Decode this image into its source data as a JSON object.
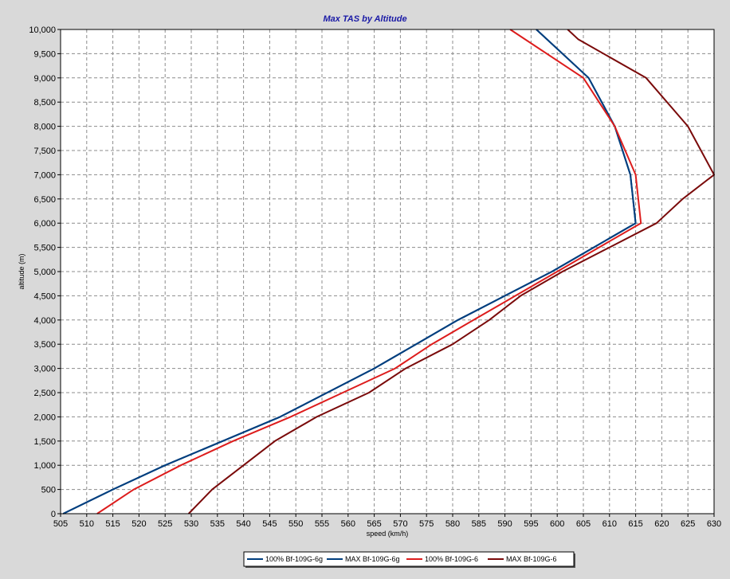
{
  "colors": {
    "background": "#d9d9d9",
    "plot_background": "#ffffff",
    "grid": "#8c8c8c",
    "title": "#1a1aa6"
  },
  "chart_data": {
    "type": "line",
    "title": "Max TAS by Altitude",
    "xlabel": "speed (km/h)",
    "ylabel": "altitude (m)",
    "xlim": [
      505,
      630
    ],
    "ylim": [
      0,
      10000
    ],
    "x_ticks": [
      "505",
      "510",
      "515",
      "520",
      "525",
      "530",
      "535",
      "540",
      "545",
      "550",
      "555",
      "560",
      "565",
      "570",
      "575",
      "580",
      "585",
      "590",
      "595",
      "600",
      "605",
      "610",
      "615",
      "620",
      "625",
      "630"
    ],
    "y_ticks": [
      "0",
      "500",
      "1,000",
      "1,500",
      "2,000",
      "2,500",
      "3,000",
      "3,500",
      "4,000",
      "4,500",
      "5,000",
      "5,500",
      "6,000",
      "6,500",
      "7,000",
      "7,500",
      "8,000",
      "8,500",
      "9,000",
      "9,500",
      "10,000"
    ],
    "grid": true,
    "legend_position": "bottom",
    "series": [
      {
        "name": "100% Bf-109G-6g",
        "color": "#003e7e",
        "points": [
          [
            505.5,
            0
          ],
          [
            515,
            500
          ],
          [
            525,
            1000
          ],
          [
            536,
            1500
          ],
          [
            547,
            2000
          ],
          [
            556,
            2500
          ],
          [
            565,
            3000
          ],
          [
            573,
            3500
          ],
          [
            581,
            4000
          ],
          [
            590,
            4500
          ],
          [
            599,
            5000
          ],
          [
            607,
            5500
          ],
          [
            615,
            6000
          ],
          [
            614.5,
            6500
          ],
          [
            614,
            7000
          ],
          [
            611,
            8000
          ],
          [
            606,
            9000
          ],
          [
            596,
            10000
          ]
        ]
      },
      {
        "name": "MAX Bf-109G-6g",
        "color": "#003e7e",
        "points": [
          [
            505.5,
            0
          ],
          [
            515,
            500
          ],
          [
            525,
            1000
          ],
          [
            536,
            1500
          ],
          [
            547,
            2000
          ],
          [
            556,
            2500
          ],
          [
            565,
            3000
          ],
          [
            573,
            3500
          ],
          [
            581,
            4000
          ],
          [
            590,
            4500
          ],
          [
            599,
            5000
          ],
          [
            607,
            5500
          ],
          [
            615,
            6000
          ],
          [
            614.5,
            6500
          ],
          [
            614,
            7000
          ],
          [
            611,
            8000
          ],
          [
            606,
            9000
          ],
          [
            596,
            10000
          ]
        ]
      },
      {
        "name": "100% Bf-109G-6",
        "color": "#dd1c1c",
        "points": [
          [
            512,
            0
          ],
          [
            519,
            500
          ],
          [
            528,
            1000
          ],
          [
            538,
            1500
          ],
          [
            549,
            2000
          ],
          [
            559,
            2500
          ],
          [
            569,
            3000
          ],
          [
            576,
            3500
          ],
          [
            584,
            4000
          ],
          [
            592,
            4500
          ],
          [
            600,
            5000
          ],
          [
            608,
            5500
          ],
          [
            616,
            6000
          ],
          [
            615.5,
            6500
          ],
          [
            615,
            7000
          ],
          [
            611,
            8000
          ],
          [
            605,
            9000
          ],
          [
            591,
            10000
          ]
        ]
      },
      {
        "name": "MAX Bf-109G-6",
        "color": "#7a0a0a",
        "points": [
          [
            529.5,
            0
          ],
          [
            534,
            500
          ],
          [
            540,
            1000
          ],
          [
            546,
            1500
          ],
          [
            554,
            2000
          ],
          [
            564,
            2500
          ],
          [
            571,
            3000
          ],
          [
            580,
            3500
          ],
          [
            587,
            4000
          ],
          [
            593,
            4500
          ],
          [
            601,
            5000
          ],
          [
            610,
            5500
          ],
          [
            619,
            6000
          ],
          [
            624,
            6500
          ],
          [
            630,
            7000
          ],
          [
            625,
            8000
          ],
          [
            617,
            9000
          ],
          [
            604,
            9800
          ],
          [
            602,
            10000
          ]
        ]
      }
    ]
  }
}
